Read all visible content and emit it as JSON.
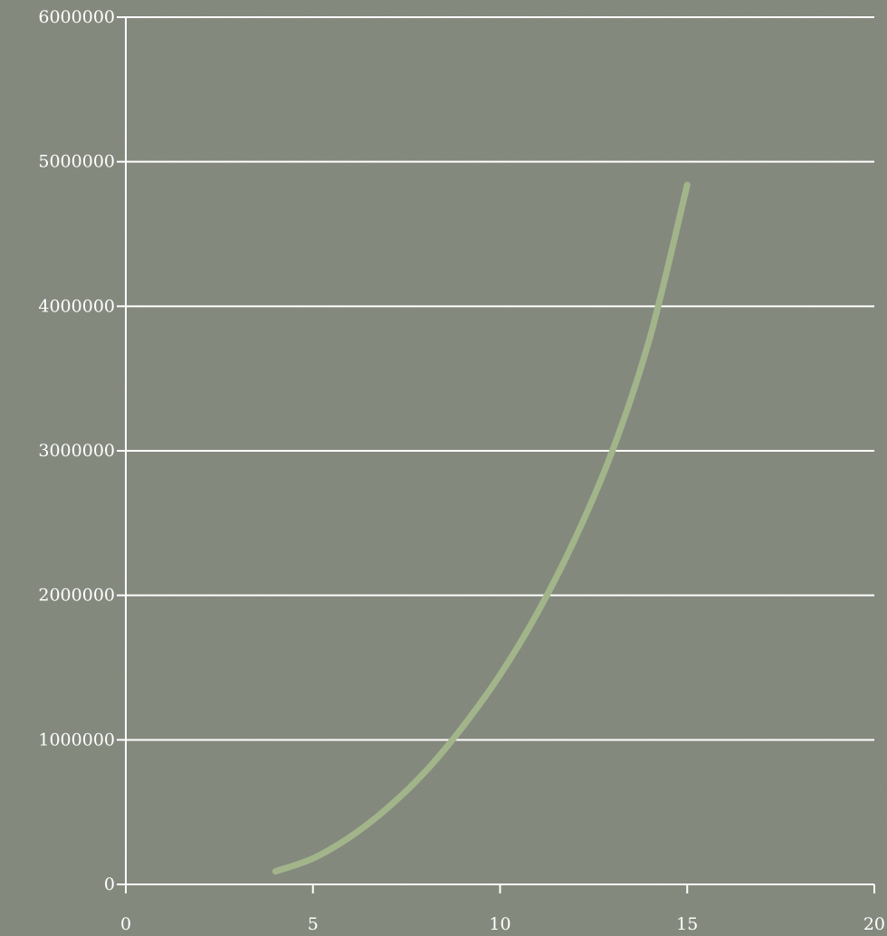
{
  "chart_data": {
    "type": "line",
    "title": "",
    "xlabel": "",
    "ylabel": "",
    "xlim": [
      0,
      20
    ],
    "ylim": [
      0,
      6000000
    ],
    "x_ticks": [
      0,
      5,
      10,
      15,
      20
    ],
    "y_ticks": [
      0,
      1000000,
      2000000,
      3000000,
      4000000,
      5000000,
      6000000
    ],
    "x_tick_labels": [
      "0",
      "5",
      "10",
      "15",
      "20"
    ],
    "y_tick_labels": [
      "0",
      "1000000",
      "2000000",
      "3000000",
      "4000000",
      "5000000",
      "6000000"
    ],
    "grid": true,
    "legend": "none",
    "series": [
      {
        "color": "#a2b58a",
        "x": [
          4,
          5,
          6,
          7,
          8,
          9,
          10,
          11,
          12,
          13,
          14,
          15
        ],
        "y": [
          90000,
          180000,
          330000,
          530000,
          780000,
          1090000,
          1450000,
          1880000,
          2390000,
          3000000,
          3780000,
          4840000
        ]
      }
    ]
  }
}
